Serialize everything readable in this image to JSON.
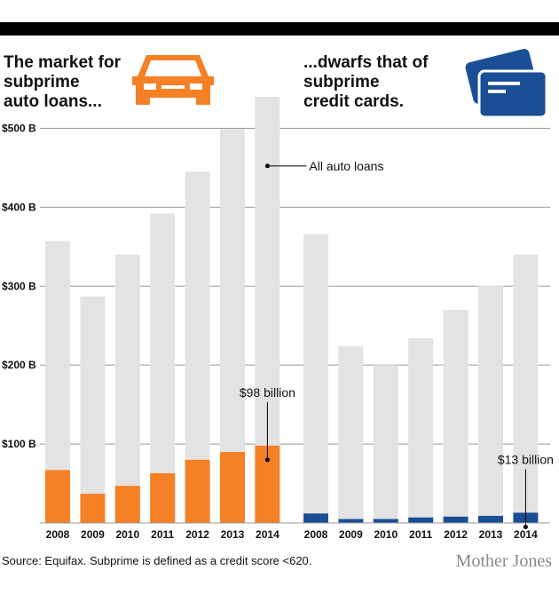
{
  "chart_data": [
    {
      "type": "bar",
      "title": [
        "The market for",
        "subprime",
        "auto loans..."
      ],
      "categories": [
        "2008",
        "2009",
        "2010",
        "2011",
        "2012",
        "2013",
        "2014"
      ],
      "series": [
        {
          "color": "#e3e3e3",
          "values": [
            357,
            287,
            340,
            392,
            445,
            499,
            540
          ],
          "annotation": "All auto loans"
        },
        {
          "color": "#f58025",
          "values": [
            67,
            37,
            47,
            63,
            80,
            90,
            98
          ],
          "value_labels": [
            null,
            null,
            null,
            null,
            null,
            null,
            "$98 billion"
          ]
        }
      ],
      "ylim": [
        0,
        550
      ],
      "yticks": [
        {
          "value": 100,
          "label": "$100 B"
        },
        {
          "value": 200,
          "label": "$200 B"
        },
        {
          "value": 300,
          "label": "$300 B"
        },
        {
          "value": 400,
          "label": "$400 B"
        },
        {
          "value": 500,
          "label": "$500 B"
        }
      ],
      "grid": true
    },
    {
      "type": "bar",
      "title": [
        "...dwarfs that of",
        "subprime",
        "credit cards."
      ],
      "categories": [
        "2008",
        "2009",
        "2010",
        "2011",
        "2012",
        "2013",
        "2014"
      ],
      "series": [
        {
          "color": "#e3e3e3",
          "values": [
            366,
            224,
            200,
            234,
            270,
            301,
            340
          ]
        },
        {
          "color": "#1a4f96",
          "values": [
            12,
            5,
            5,
            7,
            8,
            9,
            13
          ],
          "value_labels": [
            null,
            null,
            null,
            null,
            null,
            null,
            "$13 billion"
          ]
        }
      ],
      "ylim": [
        0,
        550
      ]
    }
  ],
  "source": "Source: Equifax. Subprime is defined as a credit score <620.",
  "brand": "Mother Jones"
}
